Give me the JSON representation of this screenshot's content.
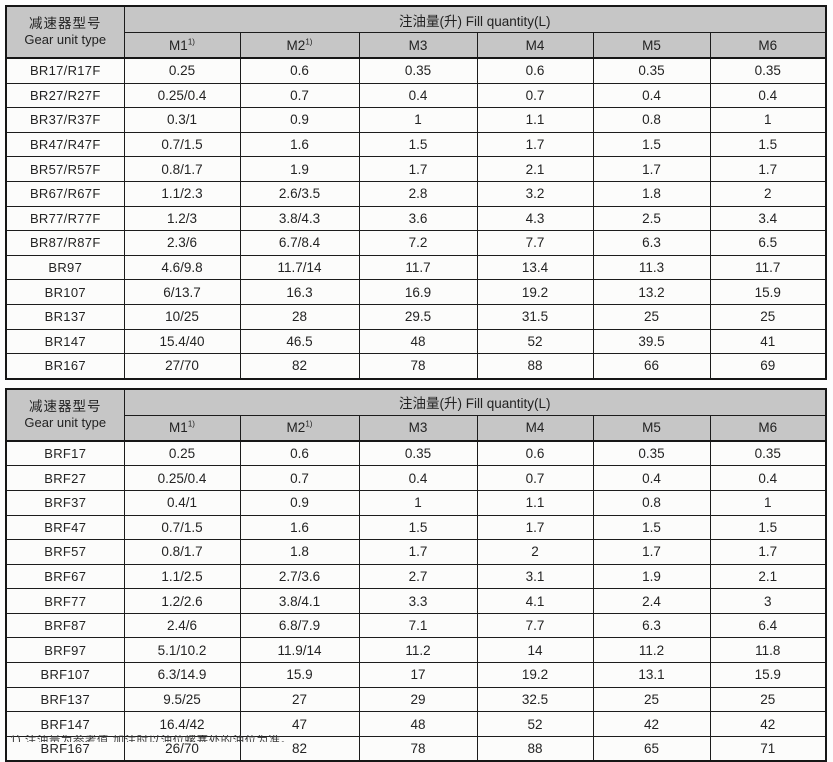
{
  "tables": [
    {
      "row_header_title_cn": "减速器型号",
      "row_header_title_en": "Gear unit type",
      "quantity_header": "注油量(升) Fill quantity(L)",
      "columns": [
        {
          "label": "M1",
          "sup": "1)"
        },
        {
          "label": "M2",
          "sup": "1)"
        },
        {
          "label": "M3",
          "sup": ""
        },
        {
          "label": "M4",
          "sup": ""
        },
        {
          "label": "M5",
          "sup": ""
        },
        {
          "label": "M6",
          "sup": ""
        }
      ],
      "rows": [
        {
          "type": "BR17/R17F",
          "values": [
            "0.25",
            "0.6",
            "0.35",
            "0.6",
            "0.35",
            "0.35"
          ]
        },
        {
          "type": "BR27/R27F",
          "values": [
            "0.25/0.4",
            "0.7",
            "0.4",
            "0.7",
            "0.4",
            "0.4"
          ]
        },
        {
          "type": "BR37/R37F",
          "values": [
            "0.3/1",
            "0.9",
            "1",
            "1.1",
            "0.8",
            "1"
          ]
        },
        {
          "type": "BR47/R47F",
          "values": [
            "0.7/1.5",
            "1.6",
            "1.5",
            "1.7",
            "1.5",
            "1.5"
          ]
        },
        {
          "type": "BR57/R57F",
          "values": [
            "0.8/1.7",
            "1.9",
            "1.7",
            "2.1",
            "1.7",
            "1.7"
          ]
        },
        {
          "type": "BR67/R67F",
          "values": [
            "1.1/2.3",
            "2.6/3.5",
            "2.8",
            "3.2",
            "1.8",
            "2"
          ]
        },
        {
          "type": "BR77/R77F",
          "values": [
            "1.2/3",
            "3.8/4.3",
            "3.6",
            "4.3",
            "2.5",
            "3.4"
          ]
        },
        {
          "type": "BR87/R87F",
          "values": [
            "2.3/6",
            "6.7/8.4",
            "7.2",
            "7.7",
            "6.3",
            "6.5"
          ]
        },
        {
          "type": "BR97",
          "values": [
            "4.6/9.8",
            "11.7/14",
            "11.7",
            "13.4",
            "11.3",
            "11.7"
          ]
        },
        {
          "type": "BR107",
          "values": [
            "6/13.7",
            "16.3",
            "16.9",
            "19.2",
            "13.2",
            "15.9"
          ]
        },
        {
          "type": "BR137",
          "values": [
            "10/25",
            "28",
            "29.5",
            "31.5",
            "25",
            "25"
          ]
        },
        {
          "type": "BR147",
          "values": [
            "15.4/40",
            "46.5",
            "48",
            "52",
            "39.5",
            "41"
          ]
        },
        {
          "type": "BR167",
          "values": [
            "27/70",
            "82",
            "78",
            "88",
            "66",
            "69"
          ]
        }
      ]
    },
    {
      "row_header_title_cn": "减速器型号",
      "row_header_title_en": "Gear unit type",
      "quantity_header": "注油量(升) Fill quantity(L)",
      "columns": [
        {
          "label": "M1",
          "sup": "1)"
        },
        {
          "label": "M2",
          "sup": "1)"
        },
        {
          "label": "M3",
          "sup": ""
        },
        {
          "label": "M4",
          "sup": ""
        },
        {
          "label": "M5",
          "sup": ""
        },
        {
          "label": "M6",
          "sup": ""
        }
      ],
      "rows": [
        {
          "type": "BRF17",
          "values": [
            "0.25",
            "0.6",
            "0.35",
            "0.6",
            "0.35",
            "0.35"
          ]
        },
        {
          "type": "BRF27",
          "values": [
            "0.25/0.4",
            "0.7",
            "0.4",
            "0.7",
            "0.4",
            "0.4"
          ]
        },
        {
          "type": "BRF37",
          "values": [
            "0.4/1",
            "0.9",
            "1",
            "1.1",
            "0.8",
            "1"
          ]
        },
        {
          "type": "BRF47",
          "values": [
            "0.7/1.5",
            "1.6",
            "1.5",
            "1.7",
            "1.5",
            "1.5"
          ]
        },
        {
          "type": "BRF57",
          "values": [
            "0.8/1.7",
            "1.8",
            "1.7",
            "2",
            "1.7",
            "1.7"
          ]
        },
        {
          "type": "BRF67",
          "values": [
            "1.1/2.5",
            "2.7/3.6",
            "2.7",
            "3.1",
            "1.9",
            "2.1"
          ]
        },
        {
          "type": "BRF77",
          "values": [
            "1.2/2.6",
            "3.8/4.1",
            "3.3",
            "4.1",
            "2.4",
            "3"
          ]
        },
        {
          "type": "BRF87",
          "values": [
            "2.4/6",
            "6.8/7.9",
            "7.1",
            "7.7",
            "6.3",
            "6.4"
          ]
        },
        {
          "type": "BRF97",
          "values": [
            "5.1/10.2",
            "11.9/14",
            "11.2",
            "14",
            "11.2",
            "11.8"
          ]
        },
        {
          "type": "BRF107",
          "values": [
            "6.3/14.9",
            "15.9",
            "17",
            "19.2",
            "13.1",
            "15.9"
          ]
        },
        {
          "type": "BRF137",
          "values": [
            "9.5/25",
            "27",
            "29",
            "32.5",
            "25",
            "25"
          ]
        },
        {
          "type": "BRF147",
          "values": [
            "16.4/42",
            "47",
            "48",
            "52",
            "42",
            "42"
          ]
        },
        {
          "type": "BRF167",
          "values": [
            "26/70",
            "82",
            "78",
            "88",
            "65",
            "71"
          ]
        }
      ]
    }
  ],
  "footnote_partial": "1) 注油量为参考值,加注时以油位螺塞处的油位为准。"
}
